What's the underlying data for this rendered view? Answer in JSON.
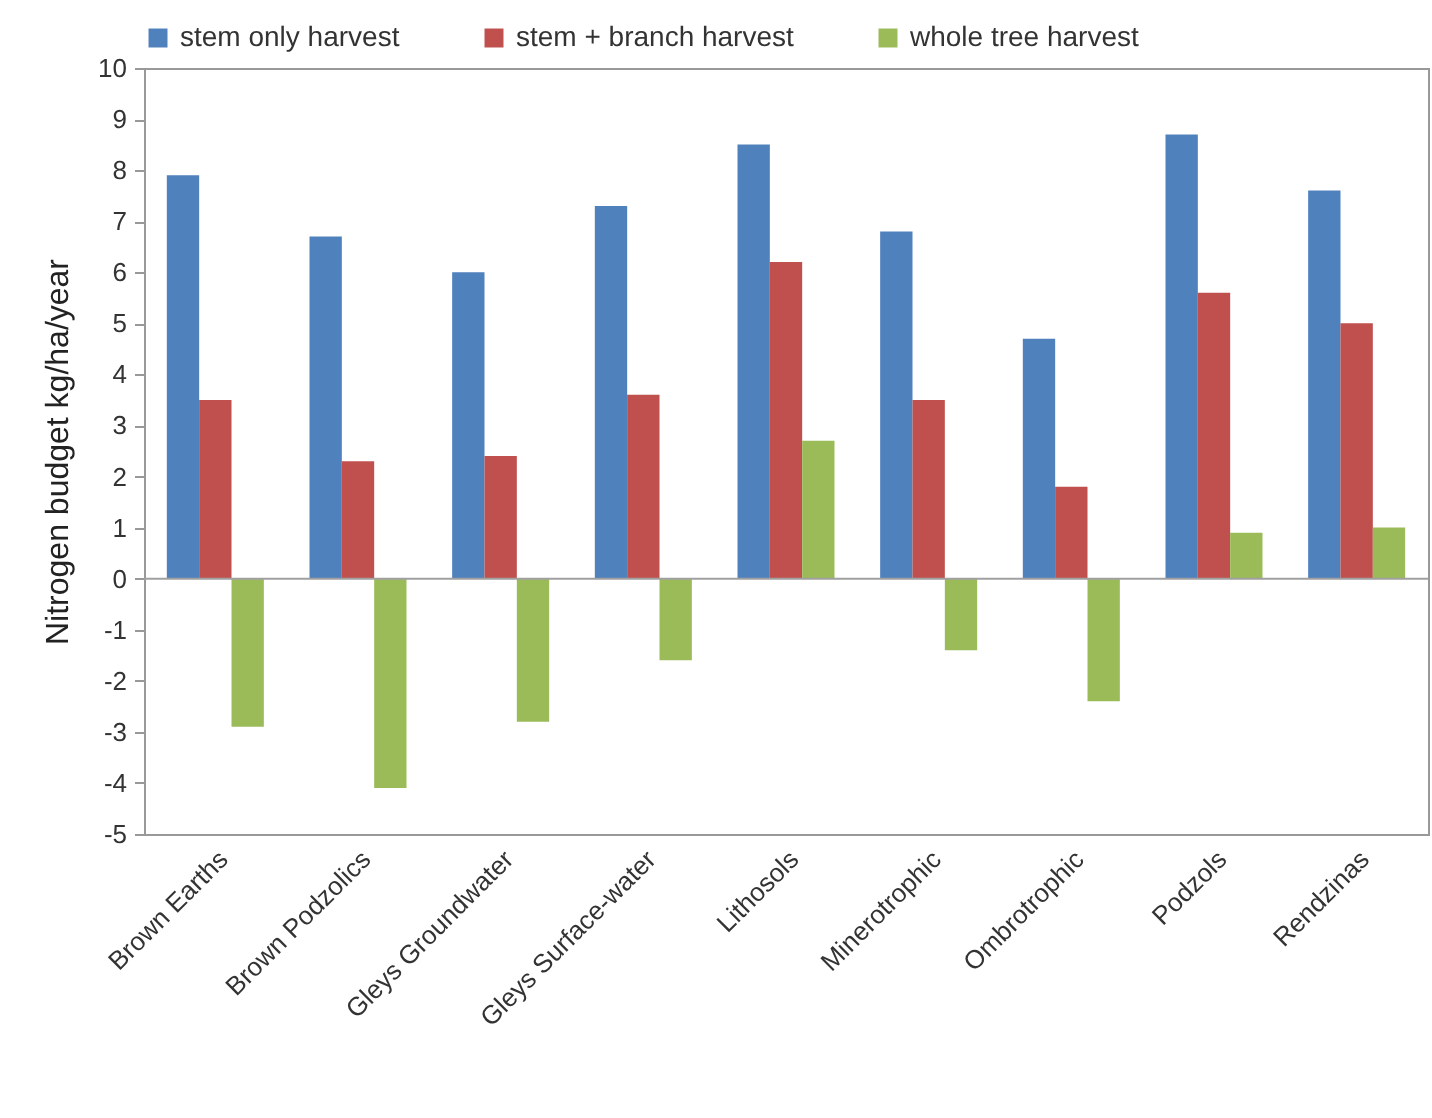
{
  "chart_data": {
    "type": "bar",
    "ylabel": "Nitrogen budget kg/ha/year",
    "categories": [
      "Brown Earths",
      "Brown Podzolics",
      "Gleys Groundwater",
      "Gleys Surface-water",
      "Lithosols",
      "Minerotrophic",
      "Ombrotrophic",
      "Podzols",
      "Rendzinas"
    ],
    "series": [
      {
        "name": "stem only harvest",
        "color": "#4f81bd",
        "values": [
          7.9,
          6.7,
          6.0,
          7.3,
          8.5,
          6.8,
          4.7,
          8.7,
          7.6
        ]
      },
      {
        "name": "stem + branch harvest",
        "color": "#c0504d",
        "values": [
          3.5,
          2.3,
          2.4,
          3.6,
          6.2,
          3.5,
          1.8,
          5.6,
          5.0
        ]
      },
      {
        "name": "whole tree harvest",
        "color": "#9bbb59",
        "values": [
          -2.9,
          -4.1,
          -2.8,
          -1.6,
          2.7,
          -1.4,
          -2.4,
          0.9,
          1.0
        ]
      }
    ],
    "ylim": [
      -5,
      10
    ],
    "yticks": [
      -5,
      -4,
      -3,
      -2,
      -1,
      0,
      1,
      2,
      3,
      4,
      5,
      6,
      7,
      8,
      9,
      10
    ],
    "ref_lines": [
      {
        "axis": "y",
        "value": 0,
        "color": "#a0a0a0"
      }
    ],
    "grid": false,
    "legend": "top"
  }
}
